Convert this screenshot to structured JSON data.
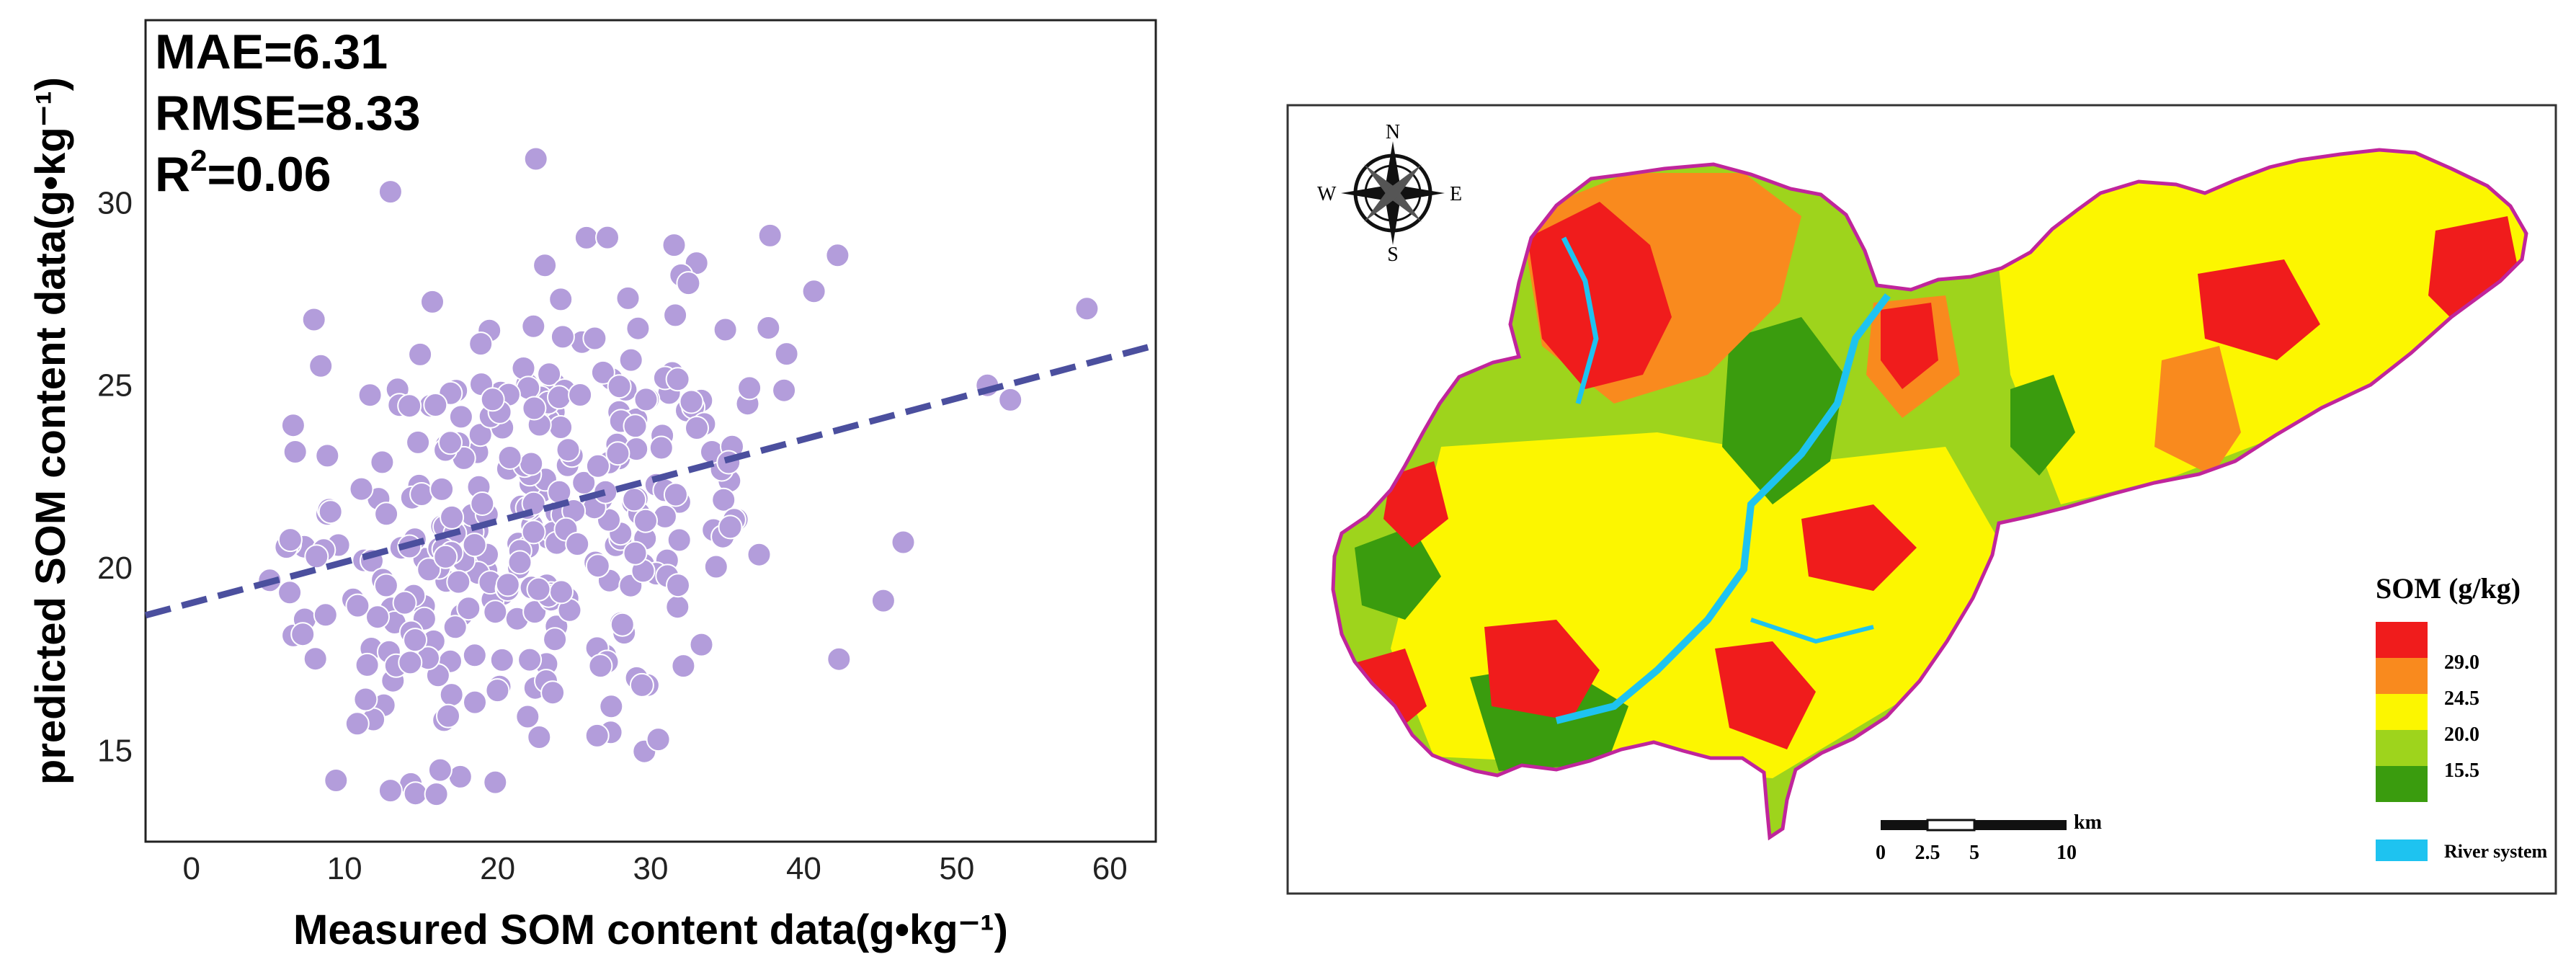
{
  "chart_data": {
    "type": "scatter",
    "stats": {
      "mae": "MAE=6.31",
      "rmse": "RMSE=8.33",
      "r2_prefix": "R",
      "r2_sup": "2",
      "r2_value": "=0.06"
    },
    "xlabel": "Measured SOM content data(g•kg⁻¹)",
    "ylabel": "predicted SOM content data(g•kg⁻¹)",
    "xlim": [
      -3,
      63
    ],
    "ylim": [
      12.5,
      35
    ],
    "xticks": [
      0,
      10,
      20,
      30,
      40,
      50,
      60
    ],
    "yticks": [
      15,
      20,
      25,
      30
    ],
    "fit_line": {
      "x": [
        -3,
        63
      ],
      "y": [
        18.7,
        26.1
      ]
    },
    "point_color": "#b39ddb",
    "line_color": "#4b4f9e"
  },
  "map": {
    "compass": {
      "n": "N",
      "s": "S",
      "e": "E",
      "w": "W"
    },
    "legend": {
      "title": "SOM (g/kg)",
      "classes": [
        {
          "color": "#f01c1c"
        },
        {
          "color": "#f98a1e"
        },
        {
          "color": "#fcf600"
        },
        {
          "color": "#9ed41c"
        },
        {
          "color": "#3a9c0e"
        }
      ],
      "breaks": [
        "29.0",
        "24.5",
        "20.0",
        "15.5"
      ],
      "river_color": "#1ec3f0",
      "river_label": "River system"
    },
    "scale": {
      "unit": "km",
      "ticks": [
        "0",
        "2.5",
        "5",
        "10"
      ]
    }
  }
}
